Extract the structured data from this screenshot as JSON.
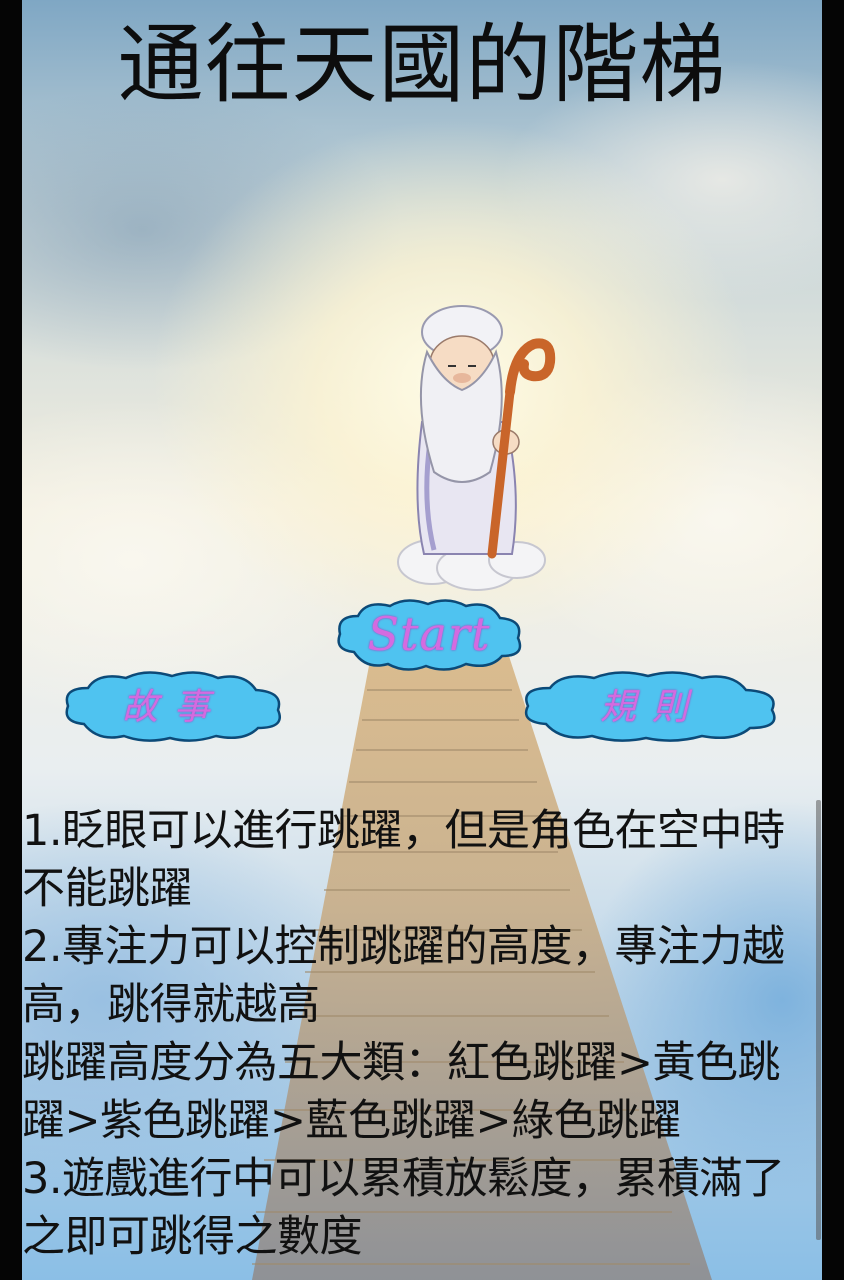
{
  "title": "通往天國的階梯",
  "buttons": {
    "start": "Start",
    "story": "故事",
    "rules": "規則"
  },
  "instructions": [
    "1.眨眼可以進行跳躍，但是角色在空中時不能跳躍",
    "2.專注力可以控制跳躍的高度，專注力越高，跳得就越高",
    " 跳躍高度分為五大類：紅色跳躍>黃色跳躍>紫色跳躍>藍色跳躍>綠色跳躍",
    "3.遊戲進行中可以累積放鬆度，累積滿了之即可跳得之數度"
  ],
  "colors": {
    "cloud_button": "#4fc3f0",
    "button_text": "#d46be0",
    "title_text": "#0d0d0d"
  },
  "icons": {
    "character": "sage-with-staff",
    "buttons": "cloud-shape"
  }
}
